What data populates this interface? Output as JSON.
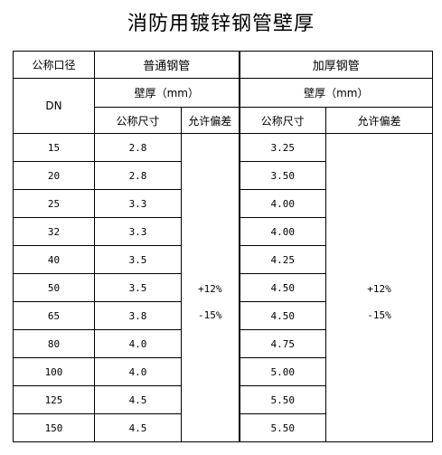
{
  "title": "消防用镀锌钢管壁厚",
  "headers": {
    "nominal_diameter": "公称口径",
    "dn": "DN",
    "standard_pipe": "普通钢管",
    "thickened_pipe": "加厚钢管",
    "wall_thickness_standard": "壁厚（mm）",
    "wall_thickness_thick": "壁厚（mm）",
    "nominal_size_1": "公称尺寸",
    "tolerance_1": "允许偏差",
    "nominal_size_2": "公称尺寸",
    "tolerance_2": "允许偏差"
  },
  "tolerance_standard": {
    "plus": "+12%",
    "minus": "-15%"
  },
  "tolerance_thick": {
    "plus": "+12%",
    "minus": "-15%"
  },
  "rows": [
    {
      "dn": "15",
      "standard": "2.8",
      "thick": "3.25"
    },
    {
      "dn": "20",
      "standard": "2.8",
      "thick": "3.50"
    },
    {
      "dn": "25",
      "standard": "3.3",
      "thick": "4.00"
    },
    {
      "dn": "32",
      "standard": "3.3",
      "thick": "4.00"
    },
    {
      "dn": "40",
      "standard": "3.5",
      "thick": "4.25"
    },
    {
      "dn": "50",
      "standard": "3.5",
      "thick": "4.50"
    },
    {
      "dn": "65",
      "standard": "3.8",
      "thick": "4.50"
    },
    {
      "dn": "80",
      "standard": "4.0",
      "thick": "4.75"
    },
    {
      "dn": "100",
      "standard": "4.0",
      "thick": "5.00"
    },
    {
      "dn": "125",
      "standard": "4.5",
      "thick": "5.50"
    },
    {
      "dn": "150",
      "standard": "4.5",
      "thick": "5.50"
    }
  ]
}
